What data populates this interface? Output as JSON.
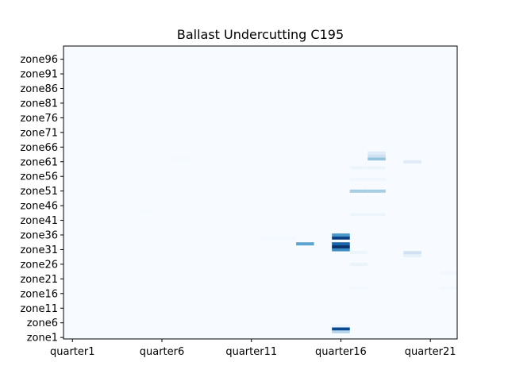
{
  "chart_data": {
    "type": "heatmap",
    "title": "Ballast Undercutting C195",
    "xlabel": "",
    "ylabel": "",
    "colormap": "Blues",
    "grid": false,
    "legend": "none",
    "n_cols": 22,
    "n_rows": 100,
    "x_tick_labels": [
      {
        "index": 1,
        "label": "quarter1"
      },
      {
        "index": 6,
        "label": "quarter6"
      },
      {
        "index": 11,
        "label": "quarter11"
      },
      {
        "index": 16,
        "label": "quarter16"
      },
      {
        "index": 21,
        "label": "quarter21"
      }
    ],
    "y_tick_labels": [
      {
        "index": 1,
        "label": "zone1"
      },
      {
        "index": 6,
        "label": "zone6"
      },
      {
        "index": 11,
        "label": "zone11"
      },
      {
        "index": 16,
        "label": "zone16"
      },
      {
        "index": 21,
        "label": "zone21"
      },
      {
        "index": 26,
        "label": "zone26"
      },
      {
        "index": 31,
        "label": "zone31"
      },
      {
        "index": 36,
        "label": "zone36"
      },
      {
        "index": 41,
        "label": "zone41"
      },
      {
        "index": 46,
        "label": "zone46"
      },
      {
        "index": 51,
        "label": "zone51"
      },
      {
        "index": 56,
        "label": "zone56"
      },
      {
        "index": 61,
        "label": "zone61"
      },
      {
        "index": 66,
        "label": "zone66"
      },
      {
        "index": 71,
        "label": "zone71"
      },
      {
        "index": 76,
        "label": "zone76"
      },
      {
        "index": 81,
        "label": "zone81"
      },
      {
        "index": 86,
        "label": "zone86"
      },
      {
        "index": 91,
        "label": "zone91"
      },
      {
        "index": 96,
        "label": "zone96"
      }
    ],
    "cells": [
      {
        "x": 16,
        "y": 3,
        "v": 0.3
      },
      {
        "x": 16,
        "y": 4,
        "v": 0.9
      },
      {
        "x": 16,
        "y": 5,
        "v": 0.05
      },
      {
        "x": 16,
        "y": 31,
        "v": 0.65
      },
      {
        "x": 16,
        "y": 32,
        "v": 1.0
      },
      {
        "x": 16,
        "y": 33,
        "v": 0.8
      },
      {
        "x": 16,
        "y": 35,
        "v": 0.95
      },
      {
        "x": 16,
        "y": 36,
        "v": 0.6
      },
      {
        "x": 14,
        "y": 33,
        "v": 0.55
      },
      {
        "x": 17,
        "y": 18,
        "v": 0.02
      },
      {
        "x": 17,
        "y": 26,
        "v": 0.06
      },
      {
        "x": 17,
        "y": 30,
        "v": 0.05
      },
      {
        "x": 17,
        "y": 43,
        "v": 0.05
      },
      {
        "x": 17,
        "y": 51,
        "v": 0.35
      },
      {
        "x": 17,
        "y": 55,
        "v": 0.04
      },
      {
        "x": 17,
        "y": 59,
        "v": 0.05
      },
      {
        "x": 18,
        "y": 43,
        "v": 0.05
      },
      {
        "x": 18,
        "y": 51,
        "v": 0.35
      },
      {
        "x": 18,
        "y": 55,
        "v": 0.04
      },
      {
        "x": 18,
        "y": 59,
        "v": 0.05
      },
      {
        "x": 18,
        "y": 62,
        "v": 0.4
      },
      {
        "x": 18,
        "y": 63,
        "v": 0.2
      },
      {
        "x": 18,
        "y": 64,
        "v": 0.12
      },
      {
        "x": 20,
        "y": 29,
        "v": 0.08
      },
      {
        "x": 20,
        "y": 30,
        "v": 0.2
      },
      {
        "x": 20,
        "y": 61,
        "v": 0.12
      },
      {
        "x": 22,
        "y": 18,
        "v": 0.02
      },
      {
        "x": 22,
        "y": 23,
        "v": 0.02
      },
      {
        "x": 12,
        "y": 35,
        "v": 0.02
      },
      {
        "x": 13,
        "y": 35,
        "v": 0.02
      },
      {
        "x": 5,
        "y": 44,
        "v": 0.01
      },
      {
        "x": 7,
        "y": 62,
        "v": 0.01
      }
    ]
  }
}
